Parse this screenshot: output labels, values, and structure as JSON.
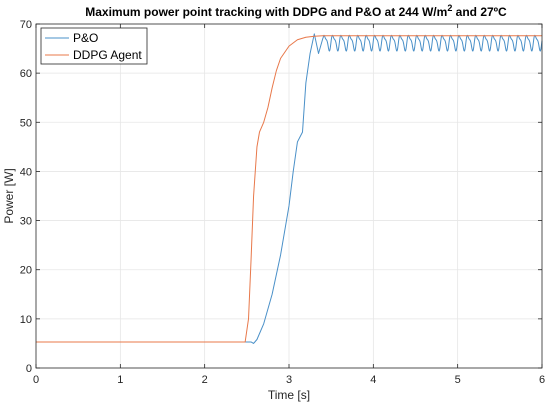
{
  "chart_data": {
    "type": "line",
    "title": {
      "main": "Maximum power point tracking with DDPG and P&O at 244 W/m",
      "sup": "2",
      "tail": " and 27ºC"
    },
    "xlabel": "Time [s]",
    "ylabel": "Power [W]",
    "xlim": [
      0,
      6
    ],
    "ylim": [
      0,
      70
    ],
    "xticks": [
      "0",
      "1",
      "2",
      "3",
      "4",
      "5",
      "6"
    ],
    "yticks": [
      "0",
      "10",
      "20",
      "30",
      "40",
      "50",
      "60",
      "70"
    ],
    "grid": true,
    "legend_position": "top-left",
    "series": [
      {
        "name": "P&O",
        "color": "#4a90c8",
        "x": [
          0,
          2.55,
          2.58,
          2.62,
          2.7,
          2.8,
          2.9,
          3.0,
          3.05,
          3.1,
          3.13,
          3.16,
          3.2,
          3.25,
          3.3,
          3.35,
          3.4,
          6
        ],
        "y": [
          5.3,
          5.3,
          5.0,
          5.8,
          9.0,
          15.0,
          23.0,
          33.0,
          40.0,
          46.0,
          47.0,
          48.0,
          58.0,
          64.0,
          68.0,
          64.0,
          67.0,
          66.0
        ],
        "oscillation": {
          "start": 3.4,
          "end": 6.0,
          "center": 66.3,
          "amplitude": 1.4,
          "period": 0.1
        }
      },
      {
        "name": "DDPG Agent",
        "color": "#e8784a",
        "x": [
          0,
          2.48,
          2.52,
          2.55,
          2.58,
          2.62,
          2.65,
          2.7,
          2.75,
          2.8,
          2.85,
          2.9,
          3.0,
          3.1,
          3.2,
          3.3,
          3.4,
          3.6,
          3.8,
          4.0,
          6.0
        ],
        "y": [
          5.3,
          5.3,
          10.0,
          22.0,
          35.0,
          45.0,
          48.0,
          50.0,
          53.0,
          57.0,
          60.5,
          63.0,
          65.5,
          66.8,
          67.3,
          67.5,
          67.6,
          67.6,
          67.6,
          67.6,
          67.6
        ]
      }
    ]
  }
}
